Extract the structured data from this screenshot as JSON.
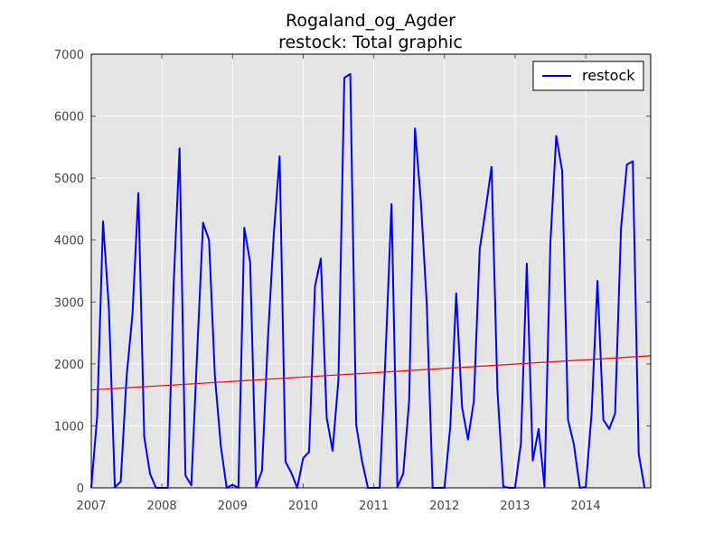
{
  "chart_data": {
    "type": "line",
    "title": "Rogaland_og_Agder",
    "subtitle": "restock: Total graphic",
    "xlabel": "",
    "ylabel": "",
    "xlim": [
      2007.0,
      2014.92
    ],
    "ylim": [
      0,
      7000
    ],
    "x_ticks": [
      "2007",
      "2008",
      "2009",
      "2010",
      "2011",
      "2012",
      "2013",
      "2014"
    ],
    "y_ticks": [
      "0",
      "1000",
      "2000",
      "3000",
      "4000",
      "5000",
      "6000",
      "7000"
    ],
    "grid": true,
    "legend_position": "top-right",
    "background": "#e5e5e5",
    "series": [
      {
        "name": "restock",
        "color": "#0000ff",
        "x_start": 2007.0,
        "x_step": 0.08333,
        "values": [
          0,
          1150,
          4300,
          2900,
          10,
          100,
          1800,
          2800,
          4760,
          820,
          220,
          0,
          0,
          0,
          3300,
          5480,
          200,
          40,
          2200,
          4280,
          4000,
          1800,
          680,
          0,
          50,
          0,
          4200,
          3640,
          10,
          280,
          2400,
          4080,
          5350,
          420,
          240,
          0,
          480,
          580,
          3250,
          3700,
          1130,
          600,
          1750,
          6620,
          6680,
          1020,
          430,
          0,
          0,
          0,
          2150,
          4580,
          10,
          230,
          1400,
          5800,
          4620,
          2970,
          0,
          0,
          0,
          1000,
          3140,
          1300,
          780,
          1400,
          3850,
          4500,
          5180,
          1580,
          20,
          0,
          0,
          720,
          3620,
          440,
          950,
          20,
          3950,
          5680,
          5120,
          1100,
          700,
          0,
          10,
          1200,
          3340,
          1100,
          950,
          1200,
          4200,
          5220,
          5270,
          550,
          0
        ]
      },
      {
        "name": "",
        "color": "#ff0000",
        "x": [
          2007.0,
          2014.92
        ],
        "values": [
          1580,
          2130
        ]
      }
    ]
  }
}
